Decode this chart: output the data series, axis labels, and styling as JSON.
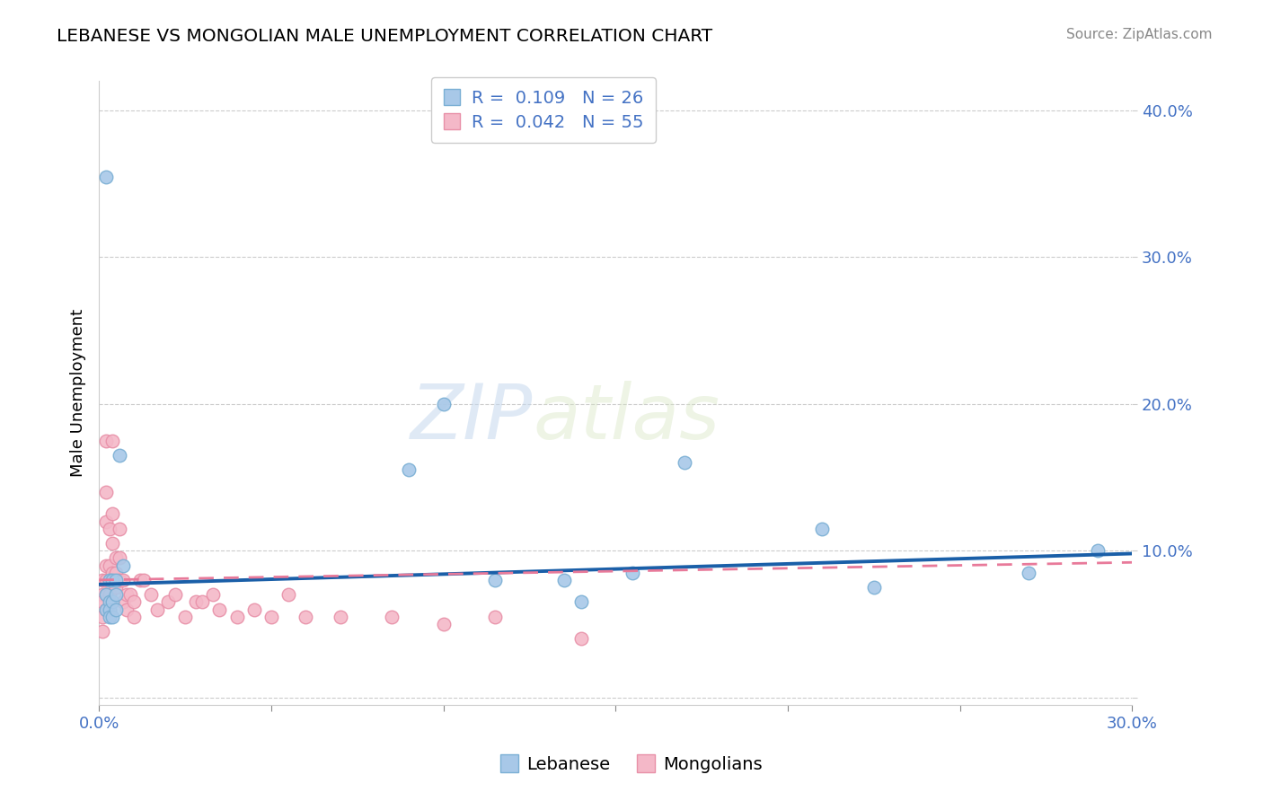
{
  "title": "LEBANESE VS MONGOLIAN MALE UNEMPLOYMENT CORRELATION CHART",
  "source": "Source: ZipAtlas.com",
  "ylabel": "Male Unemployment",
  "xlim": [
    0.0,
    0.3
  ],
  "ylim": [
    -0.005,
    0.42
  ],
  "legend1_r": "0.109",
  "legend1_n": "26",
  "legend2_r": "0.042",
  "legend2_n": "55",
  "watermark_zip": "ZIP",
  "watermark_atlas": "atlas",
  "blue_scatter": "#a8c8e8",
  "blue_edge": "#7aafd4",
  "pink_scatter": "#f4b8c8",
  "pink_edge": "#e890a8",
  "trend_blue": "#1a5fa8",
  "trend_pink": "#e87a9a",
  "background_color": "#ffffff",
  "grid_color": "#cccccc",
  "tick_color": "#4472c4",
  "lebanese_x": [
    0.002,
    0.002,
    0.002,
    0.003,
    0.003,
    0.003,
    0.003,
    0.004,
    0.004,
    0.004,
    0.005,
    0.005,
    0.005,
    0.006,
    0.007,
    0.09,
    0.1,
    0.115,
    0.135,
    0.14,
    0.155,
    0.17,
    0.21,
    0.225,
    0.27,
    0.29
  ],
  "lebanese_y": [
    0.355,
    0.07,
    0.06,
    0.08,
    0.065,
    0.06,
    0.055,
    0.08,
    0.065,
    0.055,
    0.08,
    0.07,
    0.06,
    0.165,
    0.09,
    0.155,
    0.2,
    0.08,
    0.08,
    0.065,
    0.085,
    0.16,
    0.115,
    0.075,
    0.085,
    0.1
  ],
  "mongolian_x": [
    0.001,
    0.001,
    0.001,
    0.001,
    0.001,
    0.002,
    0.002,
    0.002,
    0.002,
    0.002,
    0.002,
    0.002,
    0.003,
    0.003,
    0.003,
    0.003,
    0.003,
    0.004,
    0.004,
    0.004,
    0.004,
    0.005,
    0.005,
    0.005,
    0.006,
    0.006,
    0.006,
    0.007,
    0.007,
    0.008,
    0.008,
    0.009,
    0.01,
    0.01,
    0.012,
    0.013,
    0.015,
    0.017,
    0.02,
    0.022,
    0.025,
    0.028,
    0.03,
    0.033,
    0.035,
    0.04,
    0.045,
    0.05,
    0.055,
    0.06,
    0.07,
    0.085,
    0.1,
    0.115,
    0.14
  ],
  "mongolian_y": [
    0.08,
    0.07,
    0.065,
    0.055,
    0.045,
    0.175,
    0.14,
    0.12,
    0.09,
    0.08,
    0.07,
    0.06,
    0.115,
    0.09,
    0.08,
    0.07,
    0.06,
    0.175,
    0.125,
    0.105,
    0.085,
    0.095,
    0.085,
    0.075,
    0.115,
    0.095,
    0.08,
    0.08,
    0.065,
    0.07,
    0.06,
    0.07,
    0.065,
    0.055,
    0.08,
    0.08,
    0.07,
    0.06,
    0.065,
    0.07,
    0.055,
    0.065,
    0.065,
    0.07,
    0.06,
    0.055,
    0.06,
    0.055,
    0.07,
    0.055,
    0.055,
    0.055,
    0.05,
    0.055,
    0.04
  ],
  "leb_trend_x": [
    0.0,
    0.3
  ],
  "leb_trend_y": [
    0.077,
    0.098
  ],
  "mon_trend_x": [
    0.0,
    0.3
  ],
  "mon_trend_y": [
    0.08,
    0.092
  ]
}
